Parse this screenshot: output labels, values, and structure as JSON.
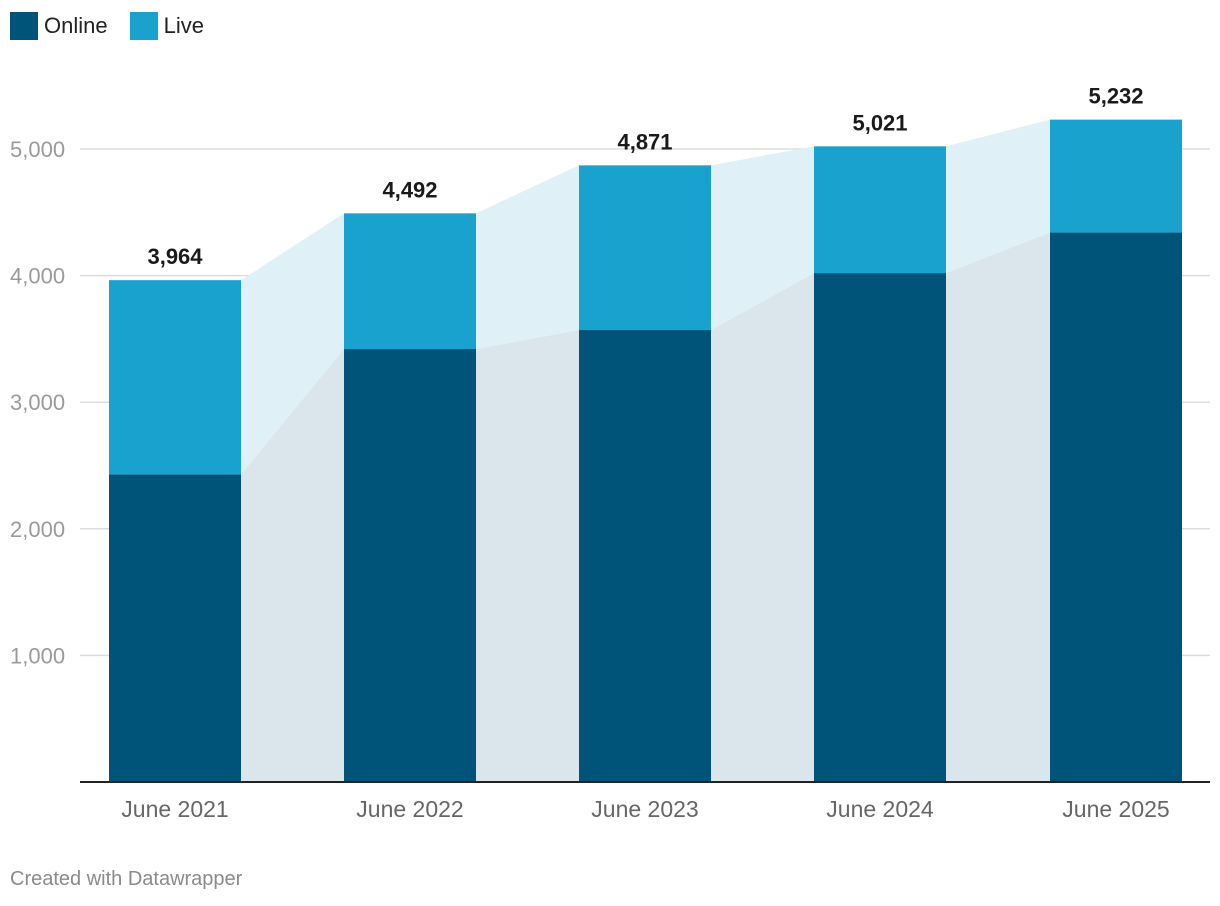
{
  "chart_data": {
    "type": "bar",
    "stacked": true,
    "categories": [
      "June 2021",
      "June 2022",
      "June 2023",
      "June 2024",
      "June 2025"
    ],
    "series": [
      {
        "name": "Online",
        "color": "#00547a",
        "values": [
          2430,
          3420,
          3570,
          4020,
          4340
        ]
      },
      {
        "name": "Live",
        "color": "#1aa2cf",
        "values": [
          1534,
          1072,
          1301,
          1001,
          892
        ]
      }
    ],
    "totals": [
      "3,964",
      "4,492",
      "4,871",
      "5,021",
      "5,232"
    ],
    "totals_values": [
      3964,
      4492,
      4871,
      5021,
      5232
    ],
    "ylim": [
      0,
      5000
    ],
    "yticks": [
      1000,
      2000,
      3000,
      4000,
      5000
    ],
    "ytick_labels": [
      "1,000",
      "2,000",
      "3,000",
      "4,000",
      "5,000"
    ],
    "grid": true,
    "legend_position": "top-left",
    "band_colors": {
      "online": "#dbe5ec",
      "live": "#dff0f7"
    }
  },
  "credit": "Created with Datawrapper"
}
